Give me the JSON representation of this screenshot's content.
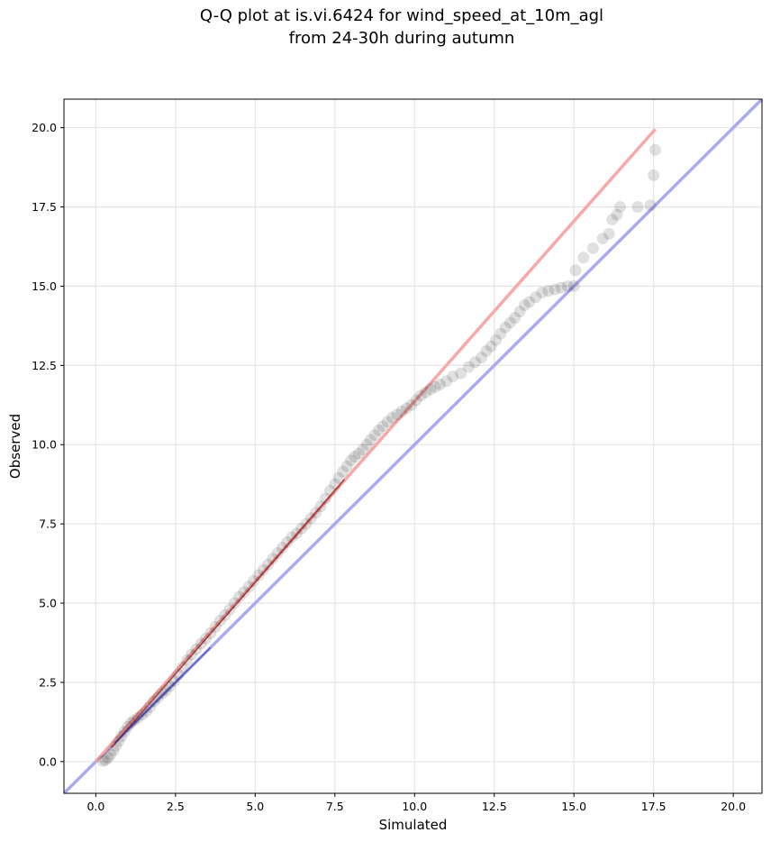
{
  "chart_data": {
    "type": "scatter",
    "title_lines": [
      "Q-Q plot at is.vi.6424 for wind_speed_at_10m_agl",
      "from 24-30h during autumn"
    ],
    "xlabel": "Simulated",
    "ylabel": "Observed",
    "xlim": [
      -1.0,
      20.9
    ],
    "ylim": [
      -1.0,
      20.9
    ],
    "x_ticks": [
      0.0,
      2.5,
      5.0,
      7.5,
      10.0,
      12.5,
      15.0,
      17.5,
      20.0
    ],
    "y_ticks": [
      0.0,
      2.5,
      5.0,
      7.5,
      10.0,
      12.5,
      15.0,
      17.5,
      20.0
    ],
    "x_tick_labels": [
      "0.0",
      "2.5",
      "5.0",
      "7.5",
      "10.0",
      "12.5",
      "15.0",
      "17.5",
      "20.0"
    ],
    "y_tick_labels": [
      "0.0",
      "2.5",
      "5.0",
      "7.5",
      "10.0",
      "12.5",
      "15.0",
      "17.5",
      "20.0"
    ],
    "grid": true,
    "colors": {
      "points": "#000000",
      "identity_line": "#aaaaf2",
      "fit_line": "#f7a8a8",
      "fit_line_dark": "#8b0000",
      "grid": "#e6e6e6"
    },
    "identity_line": [
      [
        -1.0,
        -1.0
      ],
      [
        20.9,
        20.9
      ]
    ],
    "fit_line": [
      [
        0.0,
        0.0
      ],
      [
        17.55,
        19.95
      ]
    ],
    "points": {
      "x": [
        0.22,
        0.3,
        0.38,
        0.46,
        0.55,
        0.63,
        0.72,
        0.8,
        0.9,
        1.0,
        1.1,
        1.2,
        1.32,
        1.45,
        1.58,
        1.7,
        1.82,
        1.95,
        2.08,
        2.2,
        2.32,
        2.45,
        2.58,
        2.72,
        2.86,
        3.0,
        3.15,
        3.3,
        3.45,
        3.6,
        3.75,
        3.9,
        4.05,
        4.2,
        4.35,
        4.5,
        4.65,
        4.8,
        4.95,
        5.1,
        5.25,
        5.4,
        5.55,
        5.7,
        5.85,
        6.0,
        6.15,
        6.3,
        6.45,
        6.6,
        6.75,
        6.9,
        7.05,
        7.2,
        7.35,
        7.5,
        7.62,
        7.75,
        7.88,
        8.0,
        8.12,
        8.25,
        8.38,
        8.5,
        8.62,
        8.75,
        8.88,
        9.0,
        9.15,
        9.3,
        9.45,
        9.6,
        9.75,
        9.9,
        10.05,
        10.2,
        10.35,
        10.5,
        10.65,
        10.8,
        11.0,
        11.2,
        11.45,
        11.7,
        11.9,
        12.1,
        12.25,
        12.4,
        12.55,
        12.7,
        12.85,
        13.0,
        13.15,
        13.3,
        13.45,
        13.6,
        13.8,
        14.0,
        14.2,
        14.4,
        14.6,
        14.8,
        15.0,
        15.05,
        15.3,
        15.6,
        15.9,
        16.1,
        16.2,
        16.35,
        16.45,
        17.0,
        17.4,
        17.5,
        17.55
      ],
      "y": [
        0.02,
        0.05,
        0.12,
        0.22,
        0.35,
        0.5,
        0.65,
        0.8,
        0.95,
        1.1,
        1.22,
        1.3,
        1.38,
        1.48,
        1.58,
        1.72,
        1.9,
        2.02,
        2.15,
        2.25,
        2.38,
        2.55,
        2.75,
        2.98,
        3.2,
        3.38,
        3.55,
        3.72,
        3.88,
        4.05,
        4.25,
        4.45,
        4.62,
        4.8,
        5.0,
        5.2,
        5.35,
        5.52,
        5.7,
        5.88,
        6.05,
        6.22,
        6.4,
        6.58,
        6.75,
        6.92,
        7.08,
        7.2,
        7.35,
        7.5,
        7.68,
        7.85,
        8.05,
        8.3,
        8.55,
        8.75,
        8.95,
        9.15,
        9.32,
        9.5,
        9.62,
        9.72,
        9.85,
        10.0,
        10.15,
        10.3,
        10.45,
        10.58,
        10.72,
        10.85,
        10.95,
        11.05,
        11.15,
        11.25,
        11.4,
        11.55,
        11.65,
        11.75,
        11.82,
        11.9,
        12.0,
        12.15,
        12.25,
        12.45,
        12.6,
        12.75,
        12.95,
        13.1,
        13.3,
        13.5,
        13.7,
        13.85,
        14.0,
        14.2,
        14.4,
        14.5,
        14.65,
        14.8,
        14.85,
        14.9,
        14.95,
        15.0,
        15.0,
        15.5,
        15.9,
        16.2,
        16.5,
        16.65,
        17.1,
        17.25,
        17.5,
        17.5,
        17.55,
        18.5,
        19.3
      ]
    }
  }
}
